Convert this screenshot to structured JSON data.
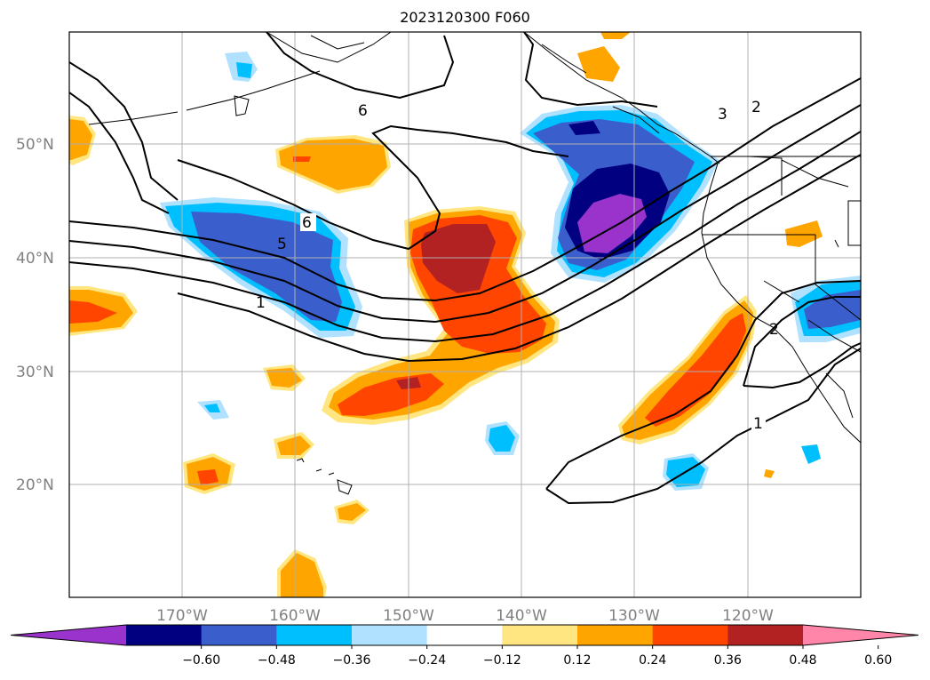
{
  "title": "2023120300 F060",
  "lat_labels": [
    "50°N",
    "40°N",
    "30°N",
    "20°N"
  ],
  "lon_labels": [
    "170°W",
    "160°W",
    "150°W",
    "140°W",
    "130°W",
    "120°W"
  ],
  "contour_labels": [
    "6",
    "6",
    "5",
    "1",
    "3",
    "2",
    "2",
    "1"
  ],
  "colorbar": {
    "ticks": [
      "−0.60",
      "−0.48",
      "−0.36",
      "−0.24",
      "−0.12",
      "0.12",
      "0.24",
      "0.36",
      "0.48",
      "0.60"
    ],
    "colors": [
      "#9933cc",
      "#000080",
      "#3a5fcd",
      "#00bfff",
      "#b0e2ff",
      "#ffffff",
      "#ffe680",
      "#ffa500",
      "#ff4500",
      "#b22222",
      "#ff85a9"
    ]
  }
}
